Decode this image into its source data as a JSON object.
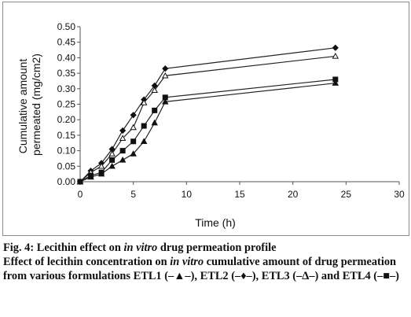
{
  "chart_data": {
    "type": "line",
    "xlabel": "Time (h)",
    "ylabel_line1": "Cumulative amount",
    "ylabel_line2": "permeated (mg/cm2)",
    "xlim": [
      0,
      30
    ],
    "ylim": [
      0,
      0.5
    ],
    "xticks": [
      0,
      5,
      10,
      15,
      20,
      25,
      30
    ],
    "yticks": [
      "0.00",
      "0.05",
      "0.10",
      "0.15",
      "0.20",
      "0.25",
      "0.30",
      "0.35",
      "0.40",
      "0.45",
      "0.50"
    ],
    "grid": false,
    "x": [
      0,
      1,
      2,
      3,
      4,
      5,
      6,
      7,
      8,
      24
    ],
    "series": [
      {
        "name": "ETL1",
        "marker": "triangle-filled",
        "values": [
          0.0,
          0.015,
          0.025,
          0.05,
          0.07,
          0.09,
          0.13,
          0.19,
          0.258,
          0.318
        ]
      },
      {
        "name": "ETL2",
        "marker": "diamond-filled",
        "values": [
          0.0,
          0.035,
          0.06,
          0.105,
          0.165,
          0.215,
          0.265,
          0.31,
          0.365,
          0.432
        ]
      },
      {
        "name": "ETL3",
        "marker": "triangle-open",
        "values": [
          0.0,
          0.03,
          0.05,
          0.09,
          0.14,
          0.175,
          0.255,
          0.295,
          0.342,
          0.405
        ]
      },
      {
        "name": "ETL4",
        "marker": "square-filled",
        "values": [
          0.0,
          0.02,
          0.03,
          0.07,
          0.1,
          0.13,
          0.18,
          0.23,
          0.272,
          0.33
        ]
      }
    ]
  },
  "caption": {
    "title_pre": "Fig. 4: Lecithin effect on ",
    "title_italic": "in vitro",
    "title_post": " drug permeation profile",
    "desc_a": "Effect of lecithin concentration on ",
    "desc_italic1": "in vitro",
    "desc_b": " cumulative amount of drug permeation from various formulations ETL1 (–▲–), ETL2 (–♦–), ETL3 (–Δ–) and ETL4 (–■–)"
  }
}
